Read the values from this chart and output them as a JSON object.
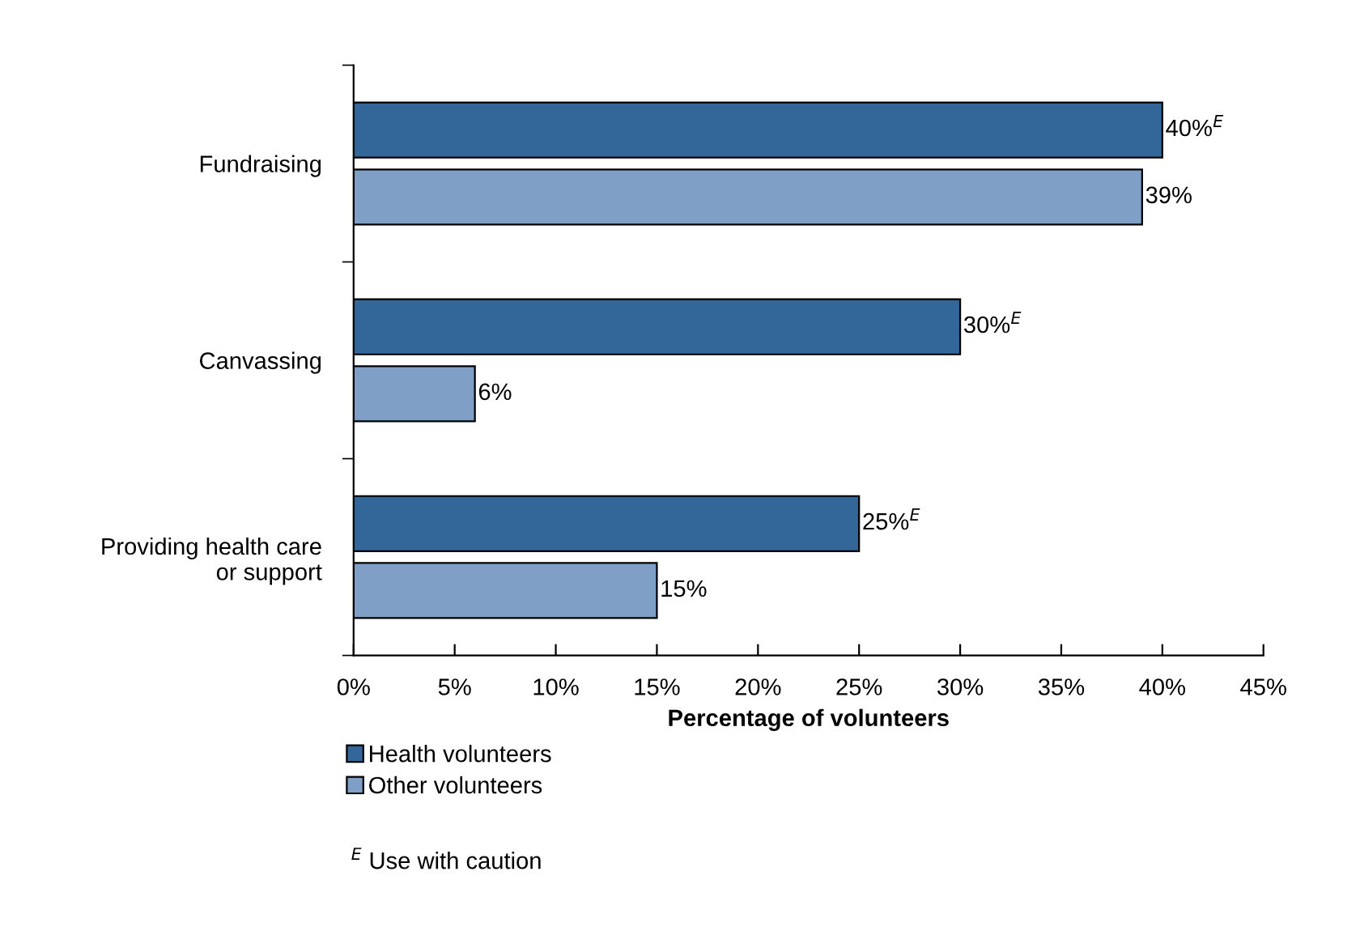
{
  "chart_data": {
    "type": "bar",
    "orientation": "horizontal",
    "categories": [
      "Fundraising",
      "Canvassing",
      "Providing health care\nor support"
    ],
    "series": [
      {
        "name": "Health volunteers",
        "color": "#336699",
        "values": [
          40,
          30,
          25
        ],
        "value_labels": [
          "40%$^{E}$",
          "30%$^{E}$",
          "25%$^{E}$"
        ]
      },
      {
        "name": "Other volunteers",
        "color": "#7f9fc6",
        "values": [
          39,
          6,
          15
        ],
        "value_labels": [
          "39%",
          "6%",
          "15%"
        ]
      }
    ],
    "xlabel": "Percentage of volunteers",
    "xlim": [
      0,
      45
    ],
    "xticks": [
      {
        "value": 0,
        "label": "0%"
      },
      {
        "value": 5,
        "label": "5%"
      },
      {
        "value": 10,
        "label": "10%"
      },
      {
        "value": 15,
        "label": "15%"
      },
      {
        "value": 20,
        "label": "20%"
      },
      {
        "value": 25,
        "label": "25%"
      },
      {
        "value": 30,
        "label": "30%"
      },
      {
        "value": 35,
        "label": "35%"
      },
      {
        "value": 40,
        "label": "40%"
      },
      {
        "value": 45,
        "label": "45%"
      }
    ],
    "grid": false,
    "legend": "bottom",
    "annotations": [
      "$^{E}$ Use with caution"
    ]
  }
}
